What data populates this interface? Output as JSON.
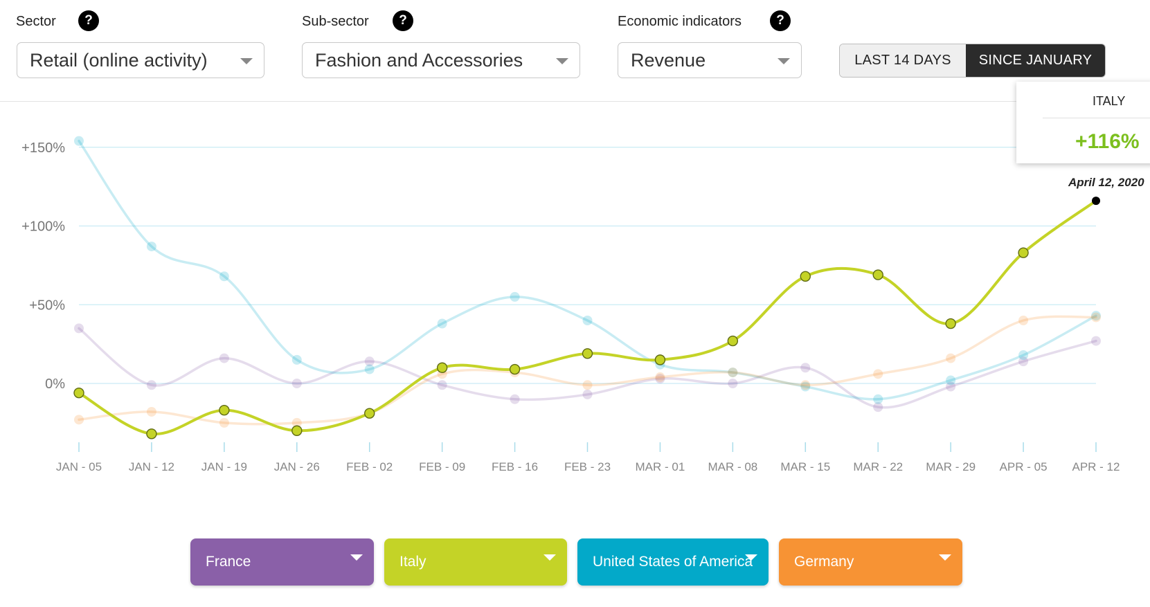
{
  "filters": {
    "sector": {
      "label": "Sector",
      "value": "Retail (online activity)"
    },
    "subsector": {
      "label": "Sub-sector",
      "value": "Fashion and Accessories"
    },
    "indicator": {
      "label": "Economic indicators",
      "value": "Revenue"
    },
    "help_glyph": "?"
  },
  "range_toggle": {
    "options": [
      "LAST 14 DAYS",
      "SINCE JANUARY"
    ],
    "selected": "SINCE JANUARY"
  },
  "tooltip": {
    "country": "ITALY",
    "value": "+116%",
    "date": "April 12, 2020"
  },
  "chart_data": {
    "type": "line",
    "categories": [
      "JAN - 05",
      "JAN - 12",
      "JAN - 19",
      "JAN - 26",
      "FEB - 02",
      "FEB - 09",
      "FEB - 16",
      "FEB - 23",
      "MAR - 01",
      "MAR - 08",
      "MAR - 15",
      "MAR - 22",
      "MAR - 29",
      "APR - 05",
      "APR - 12"
    ],
    "y_ticks": [
      0,
      50,
      100,
      150
    ],
    "y_tick_labels": [
      "0%",
      "+50%",
      "+100%",
      "+150%"
    ],
    "ylim": [
      -40,
      162
    ],
    "grid": true,
    "highlighted": "Italy",
    "series": [
      {
        "name": "France",
        "color": "#8a60a8",
        "values": [
          35,
          -1,
          16,
          0,
          14,
          -1,
          -10,
          -7,
          3,
          0,
          10,
          -15,
          -2,
          14,
          27
        ]
      },
      {
        "name": "Italy",
        "color": "#c4d327",
        "values": [
          -6,
          -32,
          -17,
          -30,
          -19,
          10,
          9,
          19,
          15,
          27,
          68,
          69,
          38,
          83,
          116
        ]
      },
      {
        "name": "United States of America",
        "color": "#03a9c9",
        "values": [
          154,
          87,
          68,
          15,
          9,
          38,
          55,
          40,
          12,
          7,
          -2,
          -10,
          2,
          18,
          43
        ]
      },
      {
        "name": "Germany",
        "color": "#f79334",
        "values": [
          -23,
          -18,
          -25,
          -25,
          -19,
          6,
          7,
          -1,
          4,
          7,
          -1,
          6,
          16,
          40,
          42
        ]
      }
    ]
  },
  "country_selectors": [
    {
      "label": "France",
      "color": "#8a60a8"
    },
    {
      "label": "Italy",
      "color": "#c4d327"
    },
    {
      "label": "United States of America",
      "color": "#03a9c9"
    },
    {
      "label": "Germany",
      "color": "#f79334"
    }
  ]
}
